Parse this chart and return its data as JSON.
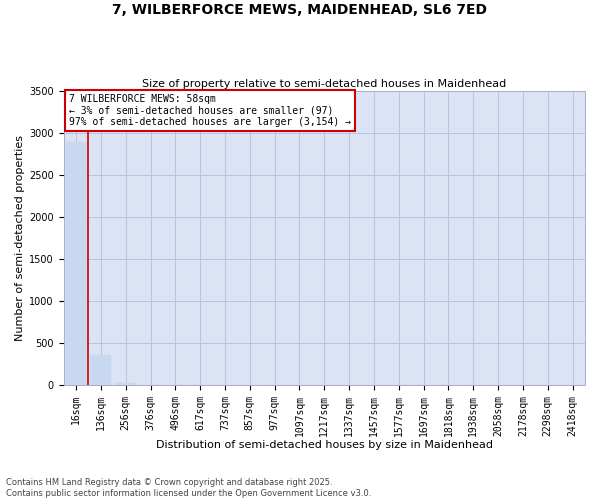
{
  "title_line1": "7, WILBERFORCE MEWS, MAIDENHEAD, SL6 7ED",
  "title_line2": "Size of property relative to semi-detached houses in Maidenhead",
  "xlabel": "Distribution of semi-detached houses by size in Maidenhead",
  "ylabel": "Number of semi-detached properties",
  "footer_line1": "Contains HM Land Registry data © Crown copyright and database right 2025.",
  "footer_line2": "Contains public sector information licensed under the Open Government Licence v3.0.",
  "annotation_title": "7 WILBERFORCE MEWS: 58sqm",
  "annotation_line2": "← 3% of semi-detached houses are smaller (97)",
  "annotation_line3": "97% of semi-detached houses are larger (3,154) →",
  "bar_color": "#c8d8f0",
  "annotation_box_edgecolor": "#cc0000",
  "background_color": "#dce3f5",
  "ylim": [
    0,
    3500
  ],
  "yticks": [
    0,
    500,
    1000,
    1500,
    2000,
    2500,
    3000,
    3500
  ],
  "categories": [
    "16sqm",
    "136sqm",
    "256sqm",
    "376sqm",
    "496sqm",
    "617sqm",
    "737sqm",
    "857sqm",
    "977sqm",
    "1097sqm",
    "1217sqm",
    "1337sqm",
    "1457sqm",
    "1577sqm",
    "1697sqm",
    "1818sqm",
    "1938sqm",
    "2058sqm",
    "2178sqm",
    "2298sqm",
    "2418sqm"
  ],
  "values": [
    2900,
    360,
    25,
    5,
    2,
    1,
    1,
    1,
    0,
    0,
    0,
    0,
    0,
    0,
    0,
    0,
    0,
    0,
    0,
    0,
    0
  ],
  "vline_x": 0.5,
  "vline_color": "#cc0000",
  "grid_color": "#b8c4e0",
  "title_fontsize": 10,
  "subtitle_fontsize": 8,
  "xlabel_fontsize": 8,
  "ylabel_fontsize": 8,
  "tick_fontsize": 7,
  "annotation_fontsize": 7,
  "footer_fontsize": 6
}
